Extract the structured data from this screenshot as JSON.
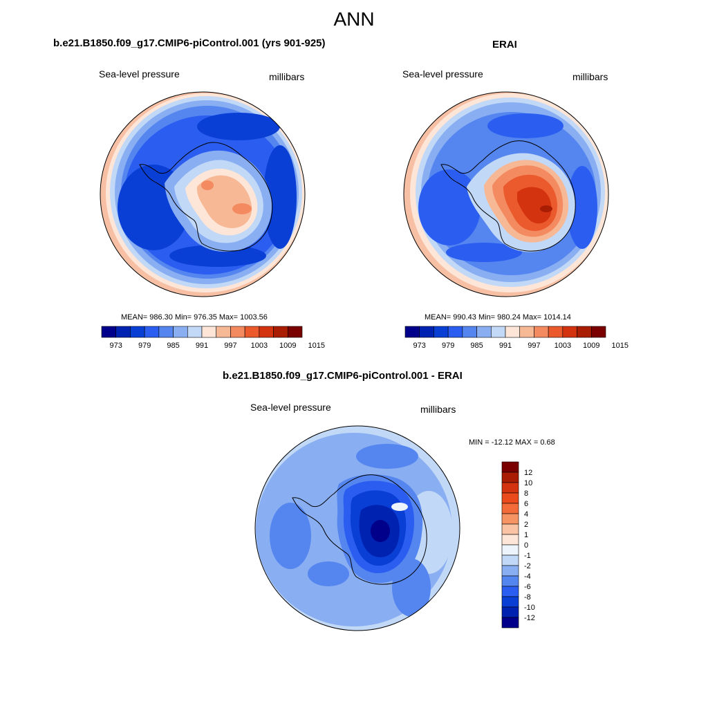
{
  "title": "ANN",
  "panels": [
    {
      "id": "model",
      "title": "b.e21.B1850.f09_g17.CMIP6-piControl.001 (yrs 901-925)",
      "left_label": "Sea-level pressure",
      "right_label": "millibars",
      "stats": "MEAN= 986.30  Min= 976.35  Max= 1003.56"
    },
    {
      "id": "obs",
      "title": "ERAI",
      "left_label": "Sea-level pressure",
      "right_label": "millibars",
      "stats": "MEAN= 990.43  Min= 980.24  Max= 1014.14"
    },
    {
      "id": "diff",
      "title": "b.e21.B1850.f09_g17.CMIP6-piControl.001 - ERAI",
      "left_label": "Sea-level pressure",
      "right_label": "millibars",
      "stats": "MIN = -12.12 MAX =   0.68"
    }
  ],
  "colorbar_horizontal": {
    "colors": [
      "#00008b",
      "#0022b0",
      "#0a3fd6",
      "#2b5ef0",
      "#5586f0",
      "#89aef2",
      "#c2d8f7",
      "#fde6d8",
      "#f7b896",
      "#f38a60",
      "#eb5a2c",
      "#d43310",
      "#a81d04",
      "#7a0000"
    ],
    "tick_labels": [
      "973",
      "979",
      "985",
      "991",
      "997",
      "1003",
      "1009",
      "1015"
    ]
  },
  "colorbar_vertical": {
    "colors": [
      "#7a0000",
      "#a81d04",
      "#d43310",
      "#eb4a1c",
      "#f36b38",
      "#f79464",
      "#fac3a3",
      "#fde6d8",
      "#eef4fb",
      "#c2d8f7",
      "#89aef2",
      "#5586f0",
      "#2b5ef0",
      "#0a3fd6",
      "#0022b0",
      "#00008b"
    ],
    "tick_labels": [
      "12",
      "10",
      "8",
      "6",
      "4",
      "2",
      "1",
      "0",
      "-1",
      "-2",
      "-4",
      "-6",
      "-8",
      "-10",
      "-12"
    ]
  }
}
